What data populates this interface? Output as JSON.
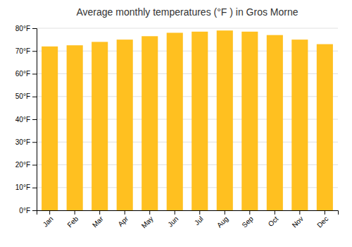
{
  "chart_data": {
    "type": "bar",
    "title": "Average monthly temperatures (°F ) in Gros Morne",
    "categories": [
      "Jan",
      "Feb",
      "Mar",
      "Apr",
      "May",
      "Jun",
      "Jul",
      "Aug",
      "Sep",
      "Oct",
      "Nov",
      "Dec"
    ],
    "values": [
      72.0,
      72.5,
      74.0,
      75.0,
      76.5,
      78.0,
      78.5,
      79.0,
      78.5,
      77.0,
      75.0,
      73.0
    ],
    "color": "#FFC020",
    "ylim": [
      0,
      80
    ],
    "yticks": [
      {
        "value": 0,
        "label": "0°F"
      },
      {
        "value": 10,
        "label": "10°F"
      },
      {
        "value": 20,
        "label": "20°F"
      },
      {
        "value": 30,
        "label": "30°F"
      },
      {
        "value": 40,
        "label": "40°F"
      },
      {
        "value": 50,
        "label": "50°F"
      },
      {
        "value": 60,
        "label": "60°F"
      },
      {
        "value": 70,
        "label": "70°F"
      },
      {
        "value": 80,
        "label": "80°F"
      }
    ],
    "grid": true
  }
}
